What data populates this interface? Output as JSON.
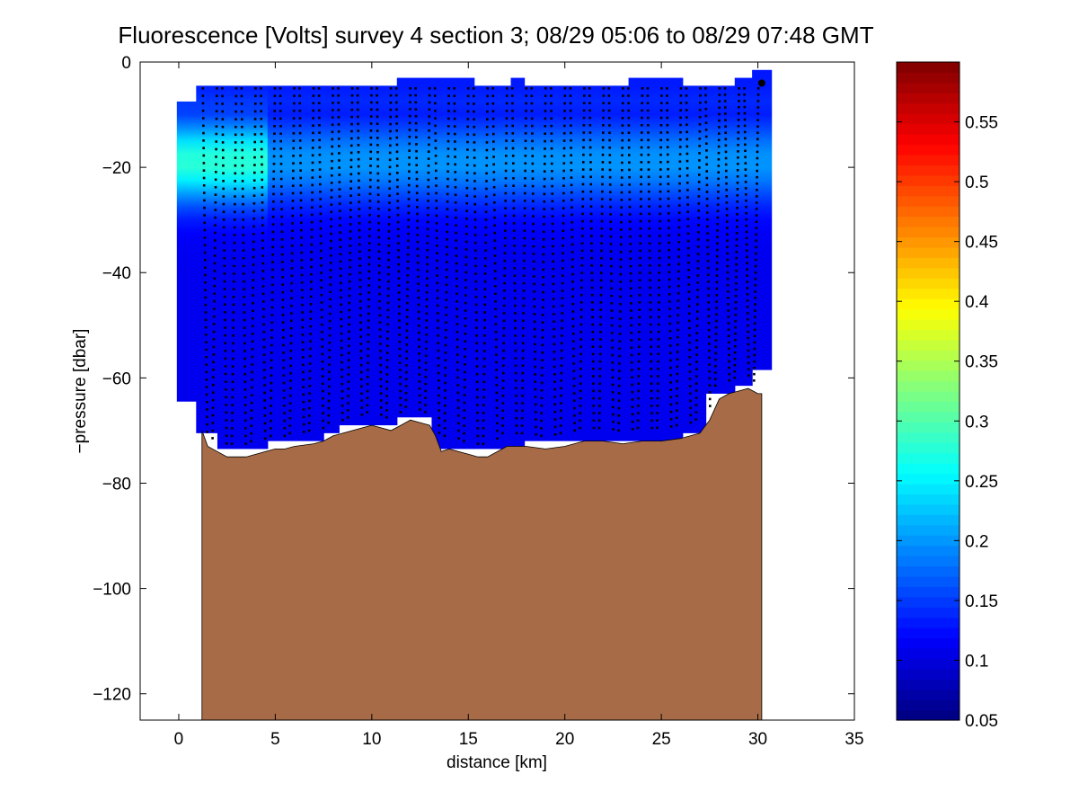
{
  "chart_data": {
    "type": "heatmap",
    "title": "Fluorescence [Volts] survey 4 section 3; 08/29 05:06 to 08/29 07:48 GMT",
    "xlabel": "distance [km]",
    "ylabel": "−pressure [dbar]",
    "xlim": [
      -2,
      35
    ],
    "ylim": [
      -125,
      0
    ],
    "x_ticks": [
      0,
      5,
      10,
      15,
      20,
      25,
      30,
      35
    ],
    "y_ticks": [
      0,
      -20,
      -40,
      -60,
      -80,
      -100,
      -120
    ],
    "x_tick_labels": [
      "0",
      "5",
      "10",
      "15",
      "20",
      "25",
      "30",
      "35"
    ],
    "y_tick_labels": [
      "0",
      "−20",
      "−40",
      "−60",
      "−80",
      "−100",
      "−120"
    ],
    "colorbar": {
      "range": [
        0.05,
        0.6
      ],
      "ticks": [
        0.05,
        0.1,
        0.15,
        0.2,
        0.25,
        0.3,
        0.35,
        0.4,
        0.45,
        0.5,
        0.55
      ],
      "tick_labels": [
        "0.05",
        "0.1",
        "0.15",
        "0.2",
        "0.25",
        "0.3",
        "0.35",
        "0.4",
        "0.45",
        "0.5",
        "0.55"
      ],
      "colormap": "jet"
    },
    "colors": {
      "seafloor": "#a86b47",
      "profile_marker": "#000000",
      "background_field": "#1f3fff"
    },
    "field": {
      "background_value": 0.11,
      "chlorophyll_max_depth": -19,
      "chlorophyll_max_value_west": 0.28,
      "chlorophyll_max_value_east": 0.2
    },
    "data_segments": [
      {
        "x0": -0.1,
        "x1": 1.0,
        "top": -7.5,
        "bottom": -64.5
      },
      {
        "x0": 0.9,
        "x1": 2.0,
        "top": -4.5,
        "bottom": -70.5
      },
      {
        "x0": 2.0,
        "x1": 4.6,
        "top": -4.5,
        "bottom": -73.5
      },
      {
        "x0": 4.6,
        "x1": 7.5,
        "top": -4.5,
        "bottom": -72.0
      },
      {
        "x0": 7.5,
        "x1": 8.3,
        "top": -4.5,
        "bottom": -70.5
      },
      {
        "x0": 8.3,
        "x1": 11.3,
        "top": -4.5,
        "bottom": -69.0
      },
      {
        "x0": 11.3,
        "x1": 13.1,
        "top": -3.0,
        "bottom": -67.5
      },
      {
        "x0": 13.1,
        "x1": 15.3,
        "top": -3.0,
        "bottom": -73.5
      },
      {
        "x0": 15.3,
        "x1": 17.2,
        "top": -4.5,
        "bottom": -73.5
      },
      {
        "x0": 17.2,
        "x1": 17.9,
        "top": -3.0,
        "bottom": -73.5
      },
      {
        "x0": 17.9,
        "x1": 22.6,
        "top": -4.5,
        "bottom": -72.0
      },
      {
        "x0": 22.6,
        "x1": 23.3,
        "top": -4.5,
        "bottom": -72.0
      },
      {
        "x0": 23.3,
        "x1": 26.1,
        "top": -3.0,
        "bottom": -72.0
      },
      {
        "x0": 26.1,
        "x1": 27.3,
        "top": -4.5,
        "bottom": -70.5
      },
      {
        "x0": 27.3,
        "x1": 28.8,
        "top": -4.5,
        "bottom": -63.0
      },
      {
        "x0": 28.8,
        "x1": 29.7,
        "top": -3.0,
        "bottom": -61.5
      },
      {
        "x0": 29.7,
        "x1": 30.7,
        "top": -1.5,
        "bottom": -58.5
      }
    ],
    "seafloor": {
      "x": [
        1.2,
        1.5,
        2.0,
        2.5,
        3.0,
        3.5,
        4.0,
        4.5,
        5.0,
        5.5,
        6.0,
        7.0,
        7.5,
        8.0,
        9.0,
        10.0,
        10.5,
        11.0,
        11.5,
        12.0,
        12.5,
        13.0,
        13.3,
        13.6,
        14.0,
        15.0,
        15.5,
        16.0,
        17.0,
        18.0,
        19.0,
        20.0,
        21.0,
        22.0,
        23.0,
        24.0,
        25.0,
        26.0,
        26.5,
        27.0,
        27.5,
        28.0,
        28.5,
        29.0,
        29.5,
        30.0,
        30.2
      ],
      "depth": [
        -70,
        -73,
        -74,
        -75,
        -75,
        -75,
        -74.5,
        -74,
        -73.5,
        -73.5,
        -73,
        -72.5,
        -72,
        -71,
        -70,
        -69,
        -69.5,
        -70,
        -69,
        -68,
        -68.5,
        -69,
        -71,
        -74,
        -73.5,
        -74.5,
        -75,
        -75,
        -73,
        -73,
        -73.5,
        -73,
        -72,
        -72,
        -72.5,
        -72,
        -72,
        -71.5,
        -71,
        -70.5,
        -68,
        -64,
        -63,
        -62.5,
        -62,
        -63,
        -63
      ]
    },
    "profiles": {
      "x_start": 1.25,
      "x_end": 30.3,
      "count": 58,
      "top": -5,
      "marker": "dot"
    }
  }
}
